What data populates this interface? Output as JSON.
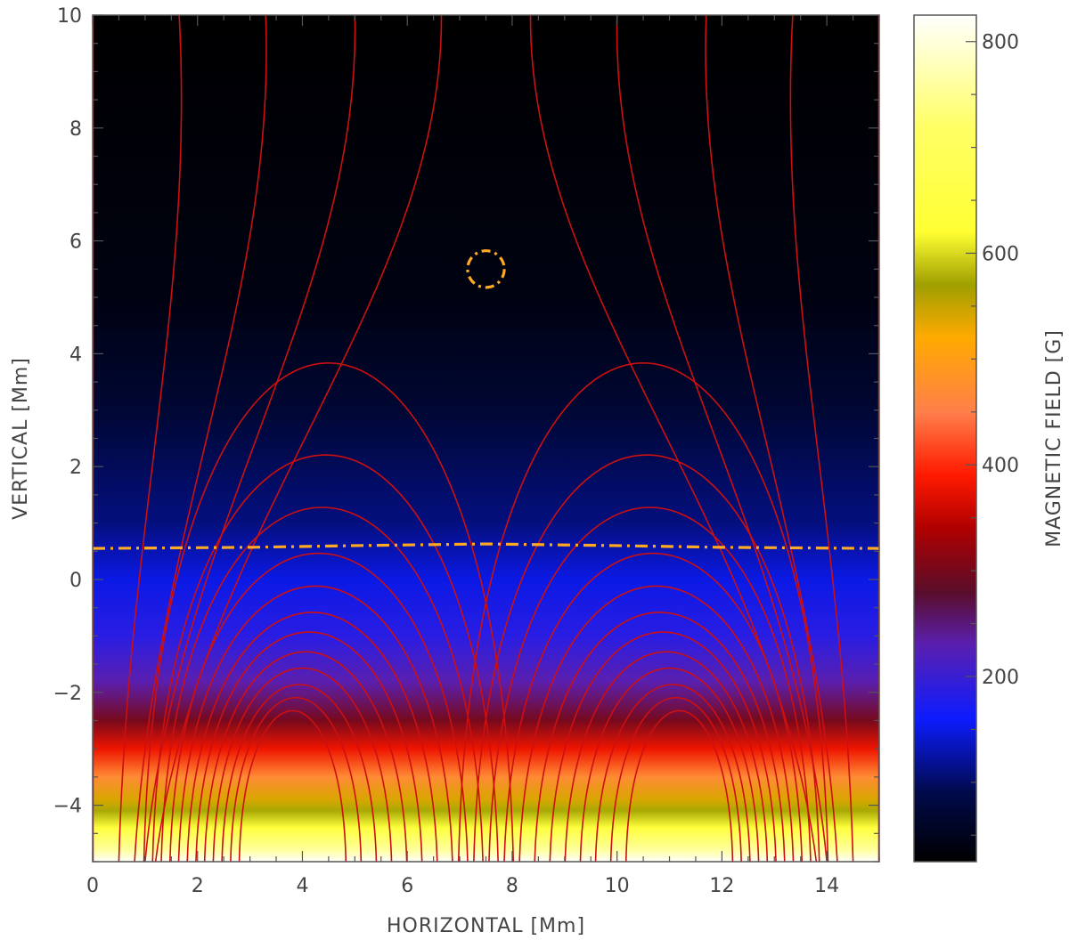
{
  "chart_data": {
    "type": "heatmap",
    "title": "",
    "xlabel": "HORIZONTAL [Mm]",
    "ylabel": "VERTICAL [Mm]",
    "xlim": [
      0,
      15
    ],
    "ylim": [
      -5,
      10
    ],
    "x_ticks": [
      "0",
      "2",
      "4",
      "6",
      "8",
      "10",
      "12",
      "14"
    ],
    "y_ticks": [
      "−4",
      "−2",
      "0",
      "2",
      "4",
      "6",
      "8",
      "10"
    ],
    "x_tick_values": [
      0,
      2,
      4,
      6,
      8,
      10,
      12,
      14
    ],
    "y_tick_values": [
      -4,
      -2,
      0,
      2,
      4,
      6,
      8,
      10
    ],
    "colorbar": {
      "label": "MAGNETIC FIELD [G]",
      "range": [
        25,
        825
      ],
      "ticks": [
        "200",
        "400",
        "600",
        "800"
      ],
      "tick_values": [
        200,
        400,
        600,
        800
      ],
      "colors": [
        {
          "value": 25,
          "color": "#000000"
        },
        {
          "value": 90,
          "color": "#000a4a"
        },
        {
          "value": 160,
          "color": "#0d1cff"
        },
        {
          "value": 230,
          "color": "#5a1fb0"
        },
        {
          "value": 280,
          "color": "#5a0d2a"
        },
        {
          "value": 340,
          "color": "#b00000"
        },
        {
          "value": 390,
          "color": "#ff1a00"
        },
        {
          "value": 450,
          "color": "#ff7f4a"
        },
        {
          "value": 520,
          "color": "#ffaa00"
        },
        {
          "value": 570,
          "color": "#9f9f00"
        },
        {
          "value": 620,
          "color": "#ffff33"
        },
        {
          "value": 720,
          "color": "#ffff66"
        },
        {
          "value": 825,
          "color": "#ffffff"
        }
      ]
    },
    "field_profile_by_height": [
      {
        "y": 10,
        "B": 25
      },
      {
        "y": 5,
        "B": 40
      },
      {
        "y": 3,
        "B": 70
      },
      {
        "y": 1,
        "B": 110
      },
      {
        "y": 0,
        "B": 150
      },
      {
        "y": -1,
        "B": 185
      },
      {
        "y": -1.8,
        "B": 230
      },
      {
        "y": -2.5,
        "B": 300
      },
      {
        "y": -3.0,
        "B": 380
      },
      {
        "y": -3.5,
        "B": 470
      },
      {
        "y": -3.9,
        "B": 540
      },
      {
        "y": -4.1,
        "B": 575
      },
      {
        "y": -4.4,
        "B": 640
      },
      {
        "y": -4.8,
        "B": 760
      },
      {
        "y": -5,
        "B": 825
      }
    ],
    "field_lines": {
      "color": "#cc1010",
      "open": [
        {
          "footpoint_x": 0.5,
          "top_x": 1.65
        },
        {
          "footpoint_x": 0.8,
          "top_x": 3.3
        },
        {
          "footpoint_x": 1.0,
          "top_x": 5.0
        },
        {
          "footpoint_x": 1.2,
          "top_x": 6.65
        },
        {
          "footpoint_x": 13.8,
          "top_x": 8.35
        },
        {
          "footpoint_x": 14.0,
          "top_x": 10.0
        },
        {
          "footpoint_x": 14.2,
          "top_x": 11.7
        },
        {
          "footpoint_x": 14.5,
          "top_x": 13.35
        }
      ],
      "left_arcade": {
        "x0": 0.0,
        "x1": 7.5,
        "peak_x": 4.5,
        "apex_heights": [
          2.6,
          1.2,
          0.4,
          -0.3,
          -0.8,
          -1.2,
          -1.5,
          -1.8,
          -2.05,
          -2.3,
          -2.5,
          -2.7
        ]
      },
      "right_arcade": {
        "x0": 7.5,
        "x1": 15.0,
        "peak_x": 10.5,
        "apex_heights": [
          2.6,
          1.2,
          0.4,
          -0.3,
          -0.8,
          -1.2,
          -1.5,
          -1.8,
          -2.05,
          -2.3,
          -2.5,
          -2.7
        ]
      },
      "boundary_lines_x": [
        0,
        15
      ]
    },
    "annotations": [
      {
        "kind": "dash-dot-line",
        "color": "#ffaa22",
        "points": [
          [
            0,
            0.55
          ],
          [
            3,
            0.57
          ],
          [
            5,
            0.6
          ],
          [
            7.5,
            0.63
          ],
          [
            10,
            0.6
          ],
          [
            12,
            0.57
          ],
          [
            15,
            0.55
          ]
        ]
      },
      {
        "kind": "dash-dot-circle",
        "color": "#ffaa22",
        "center": [
          7.5,
          5.5
        ],
        "radius": 0.35
      }
    ]
  }
}
